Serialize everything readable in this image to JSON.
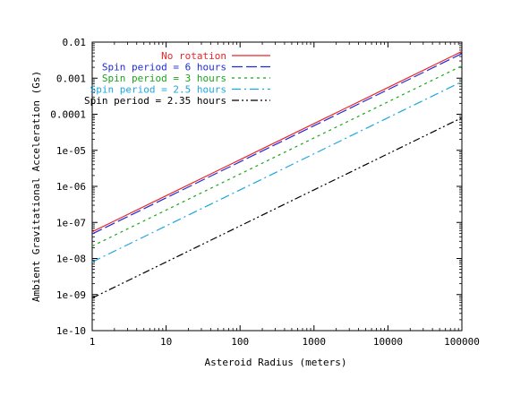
{
  "chart_data": {
    "type": "line",
    "xlabel": "Asteroid Radius (meters)",
    "ylabel": "Ambient Gravitational Acceleration (Gs)",
    "xscale": "log",
    "yscale": "log",
    "xlim": [
      1,
      100000
    ],
    "ylim": [
      1e-10,
      0.01
    ],
    "x_ticks": [
      1,
      10,
      100,
      1000,
      10000,
      100000
    ],
    "x_tick_labels": [
      "1",
      "10",
      "100",
      "1000",
      "10000",
      "100000"
    ],
    "y_ticks": [
      1e-10,
      1e-09,
      1e-08,
      1e-07,
      1e-06,
      1e-05,
      0.0001,
      0.001,
      0.01
    ],
    "y_tick_labels": [
      "1e-10",
      "1e-09",
      "1e-08",
      "1e-07",
      "1e-06",
      "1e-05",
      "0.0001",
      "0.001",
      "0.01"
    ],
    "legend_placement": "top-left",
    "series": [
      {
        "name": "No rotation",
        "color": "#e8262a",
        "style": "solid",
        "x": [
          1,
          10,
          100,
          1000,
          10000,
          100000
        ],
        "y": [
          5.5e-08,
          5.5e-07,
          5.5e-06,
          5.5e-05,
          0.00055,
          0.0055
        ]
      },
      {
        "name": "Spin period = 6 hours",
        "color": "#1f2bd4",
        "style": "dash",
        "x": [
          1,
          10,
          100,
          1000,
          10000,
          100000
        ],
        "y": [
          4.8e-08,
          4.8e-07,
          4.8e-06,
          4.8e-05,
          0.00048,
          0.0048
        ]
      },
      {
        "name": "Spin period = 3 hours",
        "color": "#1aa51a",
        "style": "dot",
        "x": [
          1,
          10,
          100,
          1000,
          10000,
          100000
        ],
        "y": [
          2.2e-08,
          2.2e-07,
          2.2e-06,
          2.2e-05,
          0.00022,
          0.0022
        ]
      },
      {
        "name": "Spin period = 2.5 hours",
        "color": "#1ea6e0",
        "style": "dashdot",
        "x": [
          1,
          10,
          100,
          1000,
          10000,
          100000
        ],
        "y": [
          8e-09,
          8e-08,
          8e-07,
          8e-06,
          8e-05,
          0.0008
        ]
      },
      {
        "name": "Spin period = 2.35 hours",
        "color": "#000000",
        "style": "dashdotdot",
        "x": [
          1,
          10,
          100,
          1000,
          10000,
          100000
        ],
        "y": [
          8e-10,
          8e-09,
          8e-08,
          8e-07,
          8e-06,
          8e-05
        ]
      }
    ]
  }
}
